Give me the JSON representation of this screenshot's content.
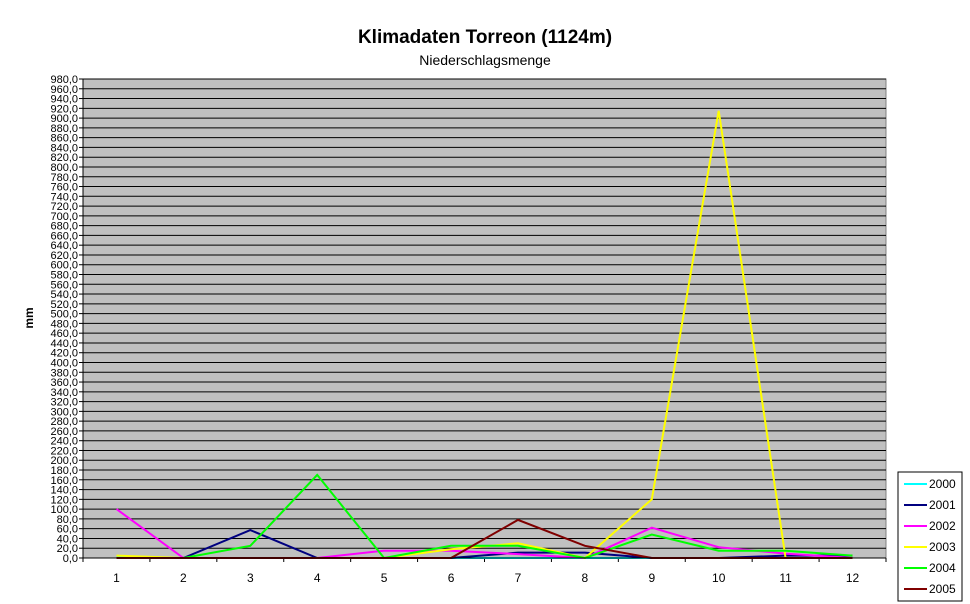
{
  "chart_data": {
    "type": "line",
    "title": "Klimadaten Torreon (1124m)",
    "subtitle": "Niederschlagsmenge",
    "xlabel": "",
    "ylabel": "mm",
    "categories": [
      "1",
      "2",
      "3",
      "4",
      "5",
      "6",
      "7",
      "8",
      "9",
      "10",
      "11",
      "12"
    ],
    "ylim": [
      0,
      980
    ],
    "ytick_step": 20,
    "grid": true,
    "legend_position": "right-bottom",
    "series": [
      {
        "name": "2000",
        "color": "#00ffff",
        "values": [
          2,
          0,
          0,
          0,
          0,
          0,
          0,
          0,
          0,
          0,
          0,
          0
        ]
      },
      {
        "name": "2001",
        "color": "#000080",
        "values": [
          0,
          0,
          57,
          0,
          0,
          0,
          11,
          11,
          0,
          0,
          5,
          5
        ]
      },
      {
        "name": "2002",
        "color": "#ff00ff",
        "values": [
          100,
          0,
          0,
          0,
          15,
          15,
          8,
          0,
          62,
          22,
          9,
          0
        ]
      },
      {
        "name": "2003",
        "color": "#ffff00",
        "values": [
          5,
          0,
          0,
          0,
          0,
          18,
          30,
          0,
          120,
          915,
          0,
          0
        ]
      },
      {
        "name": "2004",
        "color": "#00ff00",
        "values": [
          0,
          0,
          25,
          170,
          0,
          25,
          25,
          0,
          48,
          15,
          15,
          5
        ]
      },
      {
        "name": "2005",
        "color": "#800000",
        "values": [
          0,
          0,
          0,
          0,
          0,
          0,
          78,
          25,
          0,
          0,
          0,
          0
        ]
      }
    ]
  }
}
